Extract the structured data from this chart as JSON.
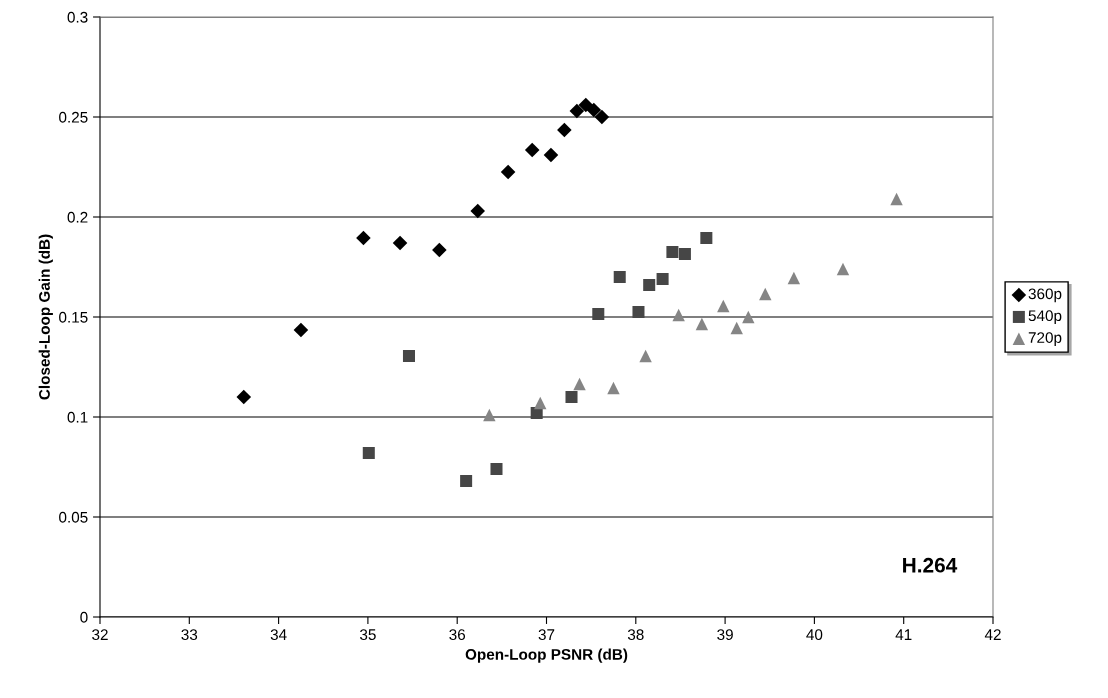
{
  "chart_data": {
    "type": "scatter",
    "xlabel": "Open-Loop PSNR (dB)",
    "ylabel": "Closed-Loop Gain (dB)",
    "xlim": [
      32,
      42
    ],
    "xticks": [
      32,
      33,
      34,
      35,
      36,
      37,
      38,
      39,
      40,
      41,
      42
    ],
    "ylim": [
      0,
      0.3
    ],
    "yticks": [
      0,
      0.05,
      0.1,
      0.15,
      0.2,
      0.25,
      0.3
    ],
    "grid": "y",
    "legend": "right",
    "annotations": [
      "H.264"
    ],
    "series": [
      {
        "name": "360p",
        "color": "#000000",
        "marker": "diamond",
        "x": [
          33.61,
          34.25,
          34.95,
          35.36,
          35.8,
          36.23,
          36.57,
          36.84,
          37.05,
          37.2,
          37.34,
          37.44,
          37.53,
          37.62
        ],
        "values": [
          0.11,
          0.1435,
          0.1895,
          0.187,
          0.1835,
          0.203,
          0.2225,
          0.2335,
          0.231,
          0.2435,
          0.253,
          0.256,
          0.2535,
          0.25
        ]
      },
      {
        "name": "540p",
        "color": "#464646",
        "marker": "square",
        "x": [
          35.01,
          35.46,
          36.1,
          36.44,
          36.89,
          37.28,
          37.58,
          37.82,
          38.03,
          38.15,
          38.3,
          38.41,
          38.55,
          38.79
        ],
        "values": [
          0.082,
          0.1305,
          0.068,
          0.074,
          0.102,
          0.11,
          0.1515,
          0.17,
          0.1525,
          0.166,
          0.169,
          0.1825,
          0.1815,
          0.1895
        ]
      },
      {
        "name": "720p",
        "color": "#858585",
        "marker": "triangle",
        "x": [
          36.36,
          36.93,
          37.37,
          37.75,
          38.11,
          38.48,
          38.74,
          38.98,
          39.13,
          39.26,
          39.45,
          39.77,
          40.32,
          40.92
        ],
        "values": [
          0.101,
          0.107,
          0.1165,
          0.1145,
          0.1305,
          0.151,
          0.1465,
          0.1555,
          0.1445,
          0.15,
          0.1615,
          0.1695,
          0.174,
          0.209
        ]
      }
    ]
  }
}
